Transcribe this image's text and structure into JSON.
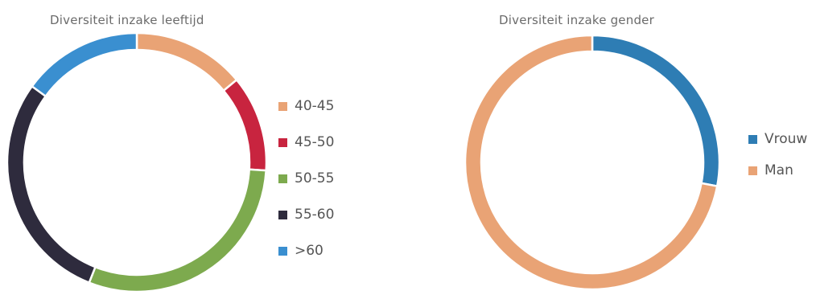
{
  "chart_data": [
    {
      "type": "pie",
      "title": "Diversiteit inzake leeftijd",
      "style": "donut",
      "legend_position": "right",
      "categories": [
        "40-45",
        "45-50",
        "50-55",
        "55-60",
        ">60"
      ],
      "values": [
        14,
        12,
        30,
        29,
        15
      ],
      "colors": [
        "#E9A375",
        "#C8243F",
        "#7DAA4E",
        "#2E2B3D",
        "#3A8FD0"
      ]
    },
    {
      "type": "pie",
      "title": "Diversiteit inzake gender",
      "style": "donut",
      "legend_position": "right",
      "categories": [
        "Vrouw",
        "Man"
      ],
      "values": [
        28,
        72
      ],
      "colors": [
        "#2E7DB4",
        "#E9A375"
      ]
    }
  ]
}
